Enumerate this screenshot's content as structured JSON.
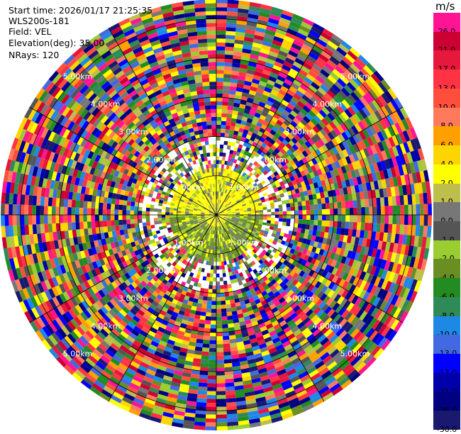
{
  "info": {
    "start_time": "Start time: 2026/01/17 21:25:35",
    "station": "WLS200s-181",
    "field": "Field: VEL",
    "elevation": "Elevation(deg): 35.00",
    "nrays": "NRays: 120"
  },
  "colorbar": {
    "unit": "m/s",
    "levels": [
      {
        "label": "26.0",
        "color": "#ff1493"
      },
      {
        "label": "21.0",
        "color": "#cc0033"
      },
      {
        "label": "17.0",
        "color": "#e6193c"
      },
      {
        "label": "13.0",
        "color": "#ff3344"
      },
      {
        "label": "10.0",
        "color": "#ff4f3c"
      },
      {
        "label": "8.0",
        "color": "#ff7a5a"
      },
      {
        "label": "6.0",
        "color": "#ffa000"
      },
      {
        "label": "4.0",
        "color": "#ffd500"
      },
      {
        "label": "2.0",
        "color": "#ffff00"
      },
      {
        "label": "1.0",
        "color": "#bebe4a"
      },
      {
        "label": "0.0",
        "color": "#777777"
      },
      {
        "label": "-1.0",
        "color": "#555555"
      },
      {
        "label": "-2.0",
        "color": "#9acd32"
      },
      {
        "label": "-4.0",
        "color": "#6b8e23"
      },
      {
        "label": "-6.0",
        "color": "#228b22"
      },
      {
        "label": "-8.0",
        "color": "#2e8b57"
      },
      {
        "label": "-10.0",
        "color": "#1e88e5"
      },
      {
        "label": "-13.0",
        "color": "#4169e1"
      },
      {
        "label": "-17.0",
        "color": "#0000ff"
      },
      {
        "label": "-21.0",
        "color": "#0000aa"
      },
      {
        "label": "-26.0",
        "color": "#000080"
      },
      {
        "label": "-30.0",
        "color": "#191970"
      }
    ]
  },
  "chart_data": {
    "type": "heatmap",
    "projection": "polar PPI",
    "field": "VEL",
    "units": "m/s",
    "elevation_deg": 35.0,
    "n_rays": 120,
    "range_rings": [
      "1.00km",
      "2.00km",
      "3.00km",
      "4.00km",
      "5.00km"
    ],
    "max_range_km": 5.5,
    "colorbar_levels": [
      26.0,
      21.0,
      17.0,
      13.0,
      10.0,
      8.0,
      6.0,
      4.0,
      2.0,
      1.0,
      0.0,
      -1.0,
      -2.0,
      -4.0,
      -6.0,
      -8.0,
      -10.0,
      -13.0,
      -17.0,
      -21.0,
      -26.0,
      -30.0
    ]
  }
}
